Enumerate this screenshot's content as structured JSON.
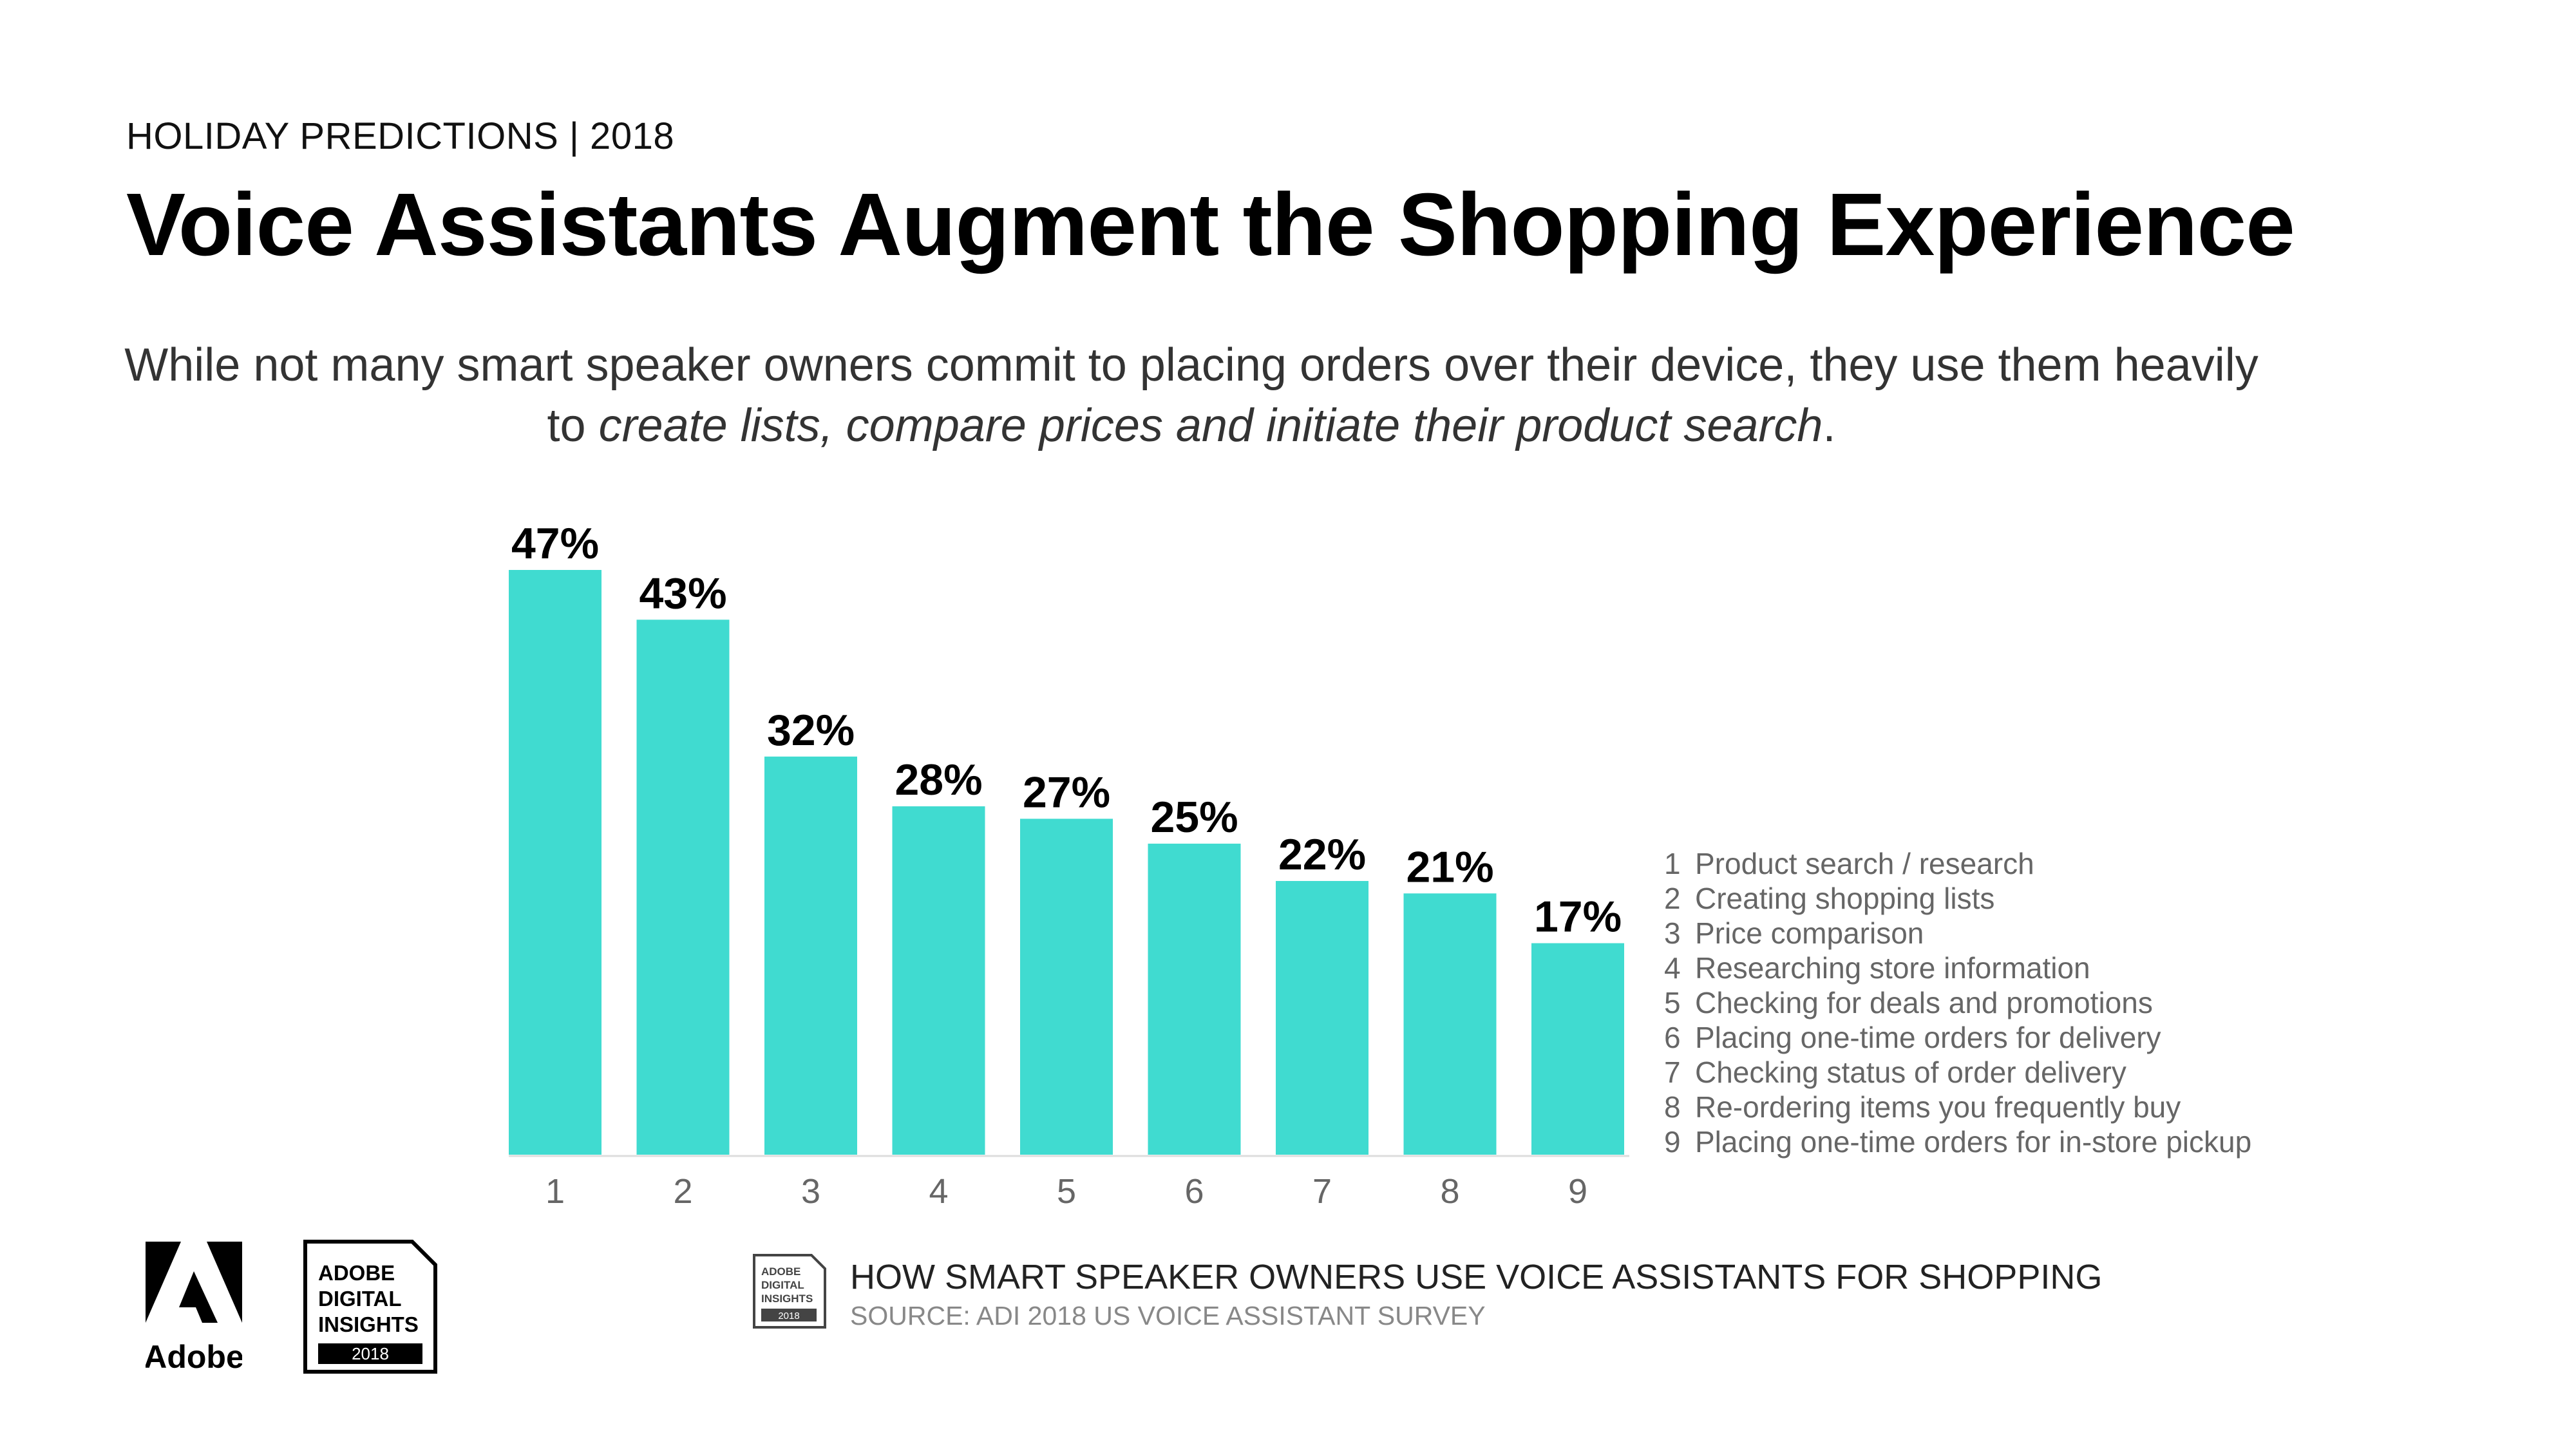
{
  "header": {
    "eyebrow": "HOLIDAY PREDICTIONS | 2018",
    "title": "Voice Assistants Augment the Shopping Experience",
    "subtitle_line1": "While not many smart speaker owners commit to placing orders over their device, they use them heavily",
    "subtitle_line2_prefix": "to ",
    "subtitle_line2_italic": "create lists, compare prices and initiate their product search",
    "subtitle_line2_suffix": "."
  },
  "chart_data": {
    "type": "bar",
    "categories": [
      "1",
      "2",
      "3",
      "4",
      "5",
      "6",
      "7",
      "8",
      "9"
    ],
    "values": [
      47,
      43,
      32,
      28,
      27,
      25,
      22,
      21,
      17
    ],
    "data_labels": [
      "47%",
      "43%",
      "32%",
      "28%",
      "27%",
      "25%",
      "22%",
      "21%",
      "17%"
    ],
    "bar_color": "#40DBD0",
    "ylim": [
      0,
      47
    ],
    "grid": false,
    "legend_position": "right",
    "legend": [
      {
        "num": "1",
        "label": "Product search / research"
      },
      {
        "num": "2",
        "label": "Creating shopping lists"
      },
      {
        "num": "3",
        "label": "Price comparison"
      },
      {
        "num": "4",
        "label": "Researching store information"
      },
      {
        "num": "5",
        "label": "Checking for deals and promotions"
      },
      {
        "num": "6",
        "label": "Placing one-time orders for delivery"
      },
      {
        "num": "7",
        "label": "Checking status of order delivery"
      },
      {
        "num": "8",
        "label": "Re-ordering items you frequently buy"
      },
      {
        "num": "9",
        "label": "Placing one-time orders for in-store pickup"
      }
    ]
  },
  "logos": {
    "adobe_wordmark": "Adobe",
    "adi_line1": "ADOBE",
    "adi_line2": "DIGITAL",
    "adi_line3": "INSIGHTS",
    "adi_year": "2018"
  },
  "footer": {
    "title": "HOW SMART SPEAKER OWNERS USE VOICE ASSISTANTS FOR SHOPPING",
    "source": "SOURCE: ADI 2018 US VOICE ASSISTANT SURVEY"
  }
}
